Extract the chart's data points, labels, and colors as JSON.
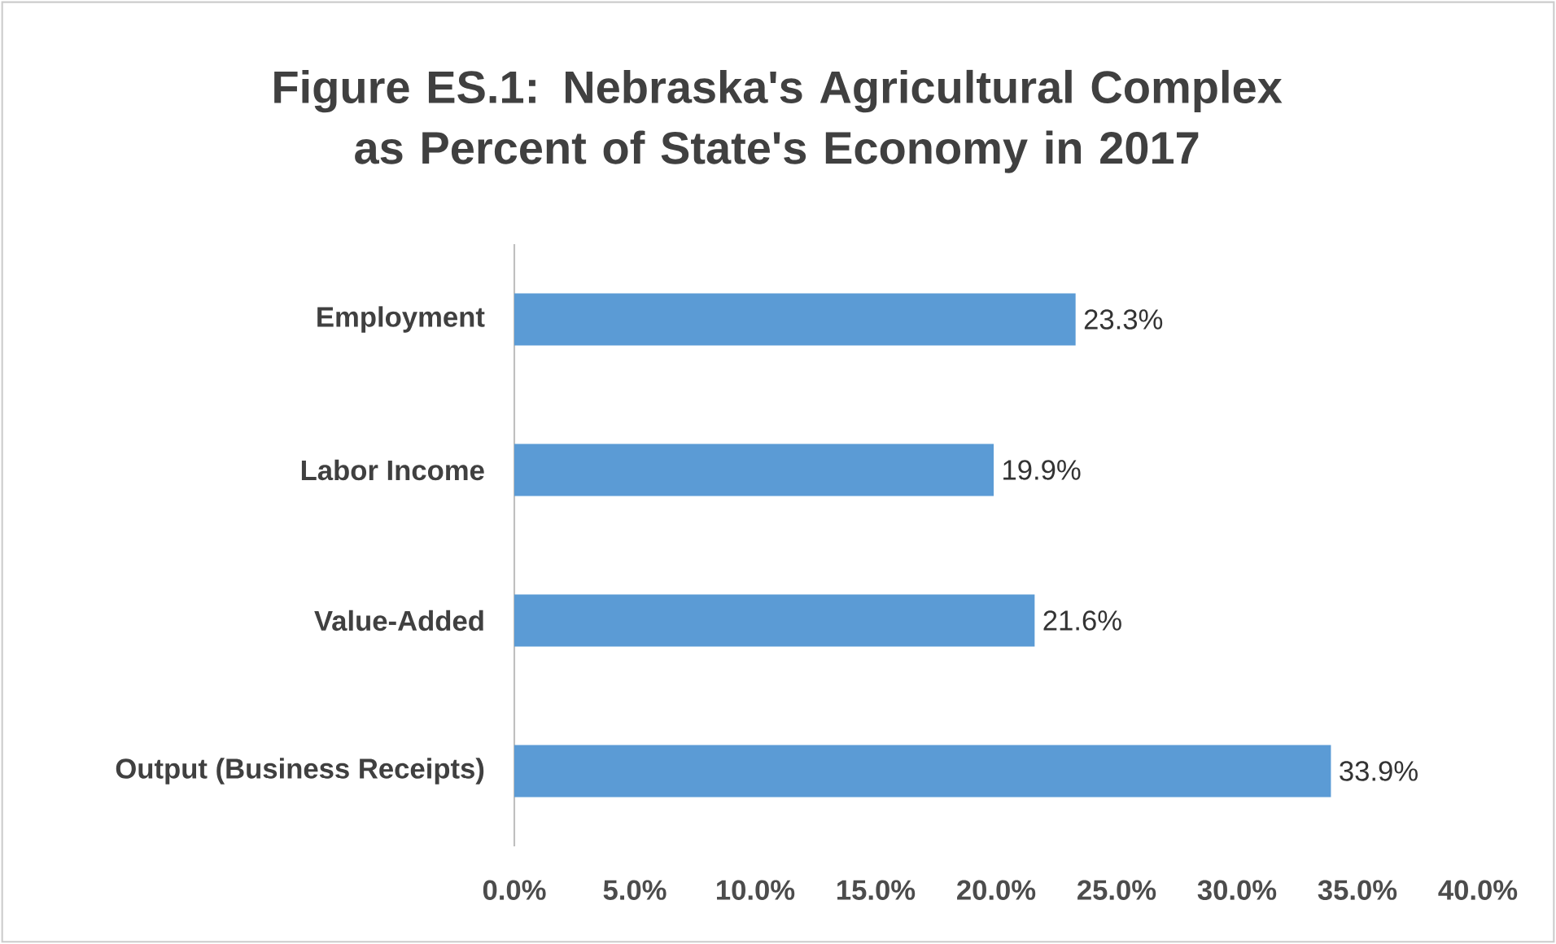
{
  "chart_data": {
    "type": "bar",
    "orientation": "horizontal",
    "title": "Figure ES.1: Nebraska's Agricultural Complex as Percent of State's Economy in 2017",
    "categories": [
      "Employment",
      "Labor Income",
      "Value-Added",
      "Output (Business Receipts)"
    ],
    "values": [
      23.3,
      19.9,
      21.6,
      33.9
    ],
    "value_labels": [
      "23.3%",
      "19.9%",
      "21.6%",
      "33.9%"
    ],
    "color": "#5b9bd5",
    "xlim": [
      0,
      40
    ],
    "xticks": [
      {
        "value": 0,
        "label": "0.0%"
      },
      {
        "value": 5,
        "label": "5.0%"
      },
      {
        "value": 10,
        "label": "10.0%"
      },
      {
        "value": 15,
        "label": "15.0%"
      },
      {
        "value": 20,
        "label": "20.0%"
      },
      {
        "value": 25,
        "label": "25.0%"
      },
      {
        "value": 30,
        "label": "30.0%"
      },
      {
        "value": 35,
        "label": "35.0%"
      },
      {
        "value": 40,
        "label": "40.0%"
      }
    ]
  }
}
